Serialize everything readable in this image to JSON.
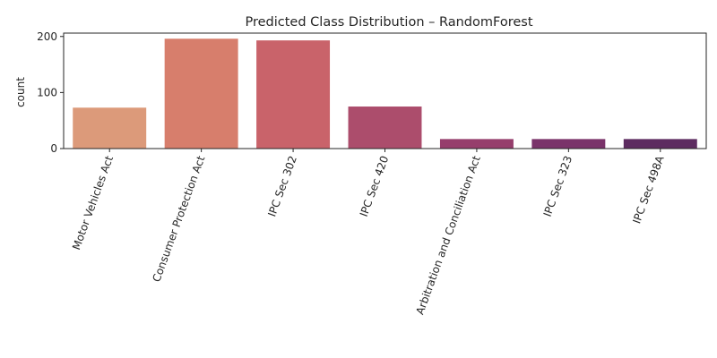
{
  "chart_data": {
    "type": "bar",
    "title": "Predicted Class Distribution – RandomForest",
    "xlabel": "",
    "ylabel": "count",
    "categories": [
      "Motor Vehicles Act",
      "Consumer Protection Act",
      "IPC Sec 302",
      "IPC Sec 420",
      "Arbitration and Conciliation Act",
      "IPC Sec 323",
      "IPC Sec 498A"
    ],
    "values": [
      73,
      196,
      193,
      75,
      17,
      17,
      17
    ],
    "ylim": [
      0,
      206
    ],
    "yticks": [
      0,
      100,
      200
    ],
    "xtick_rotation_deg": 70,
    "grid": false,
    "colors": [
      "#dc9a7a",
      "#d77e6c",
      "#c9636a",
      "#ac4d6c",
      "#963e6c",
      "#7a336a",
      "#5d2c60"
    ]
  }
}
